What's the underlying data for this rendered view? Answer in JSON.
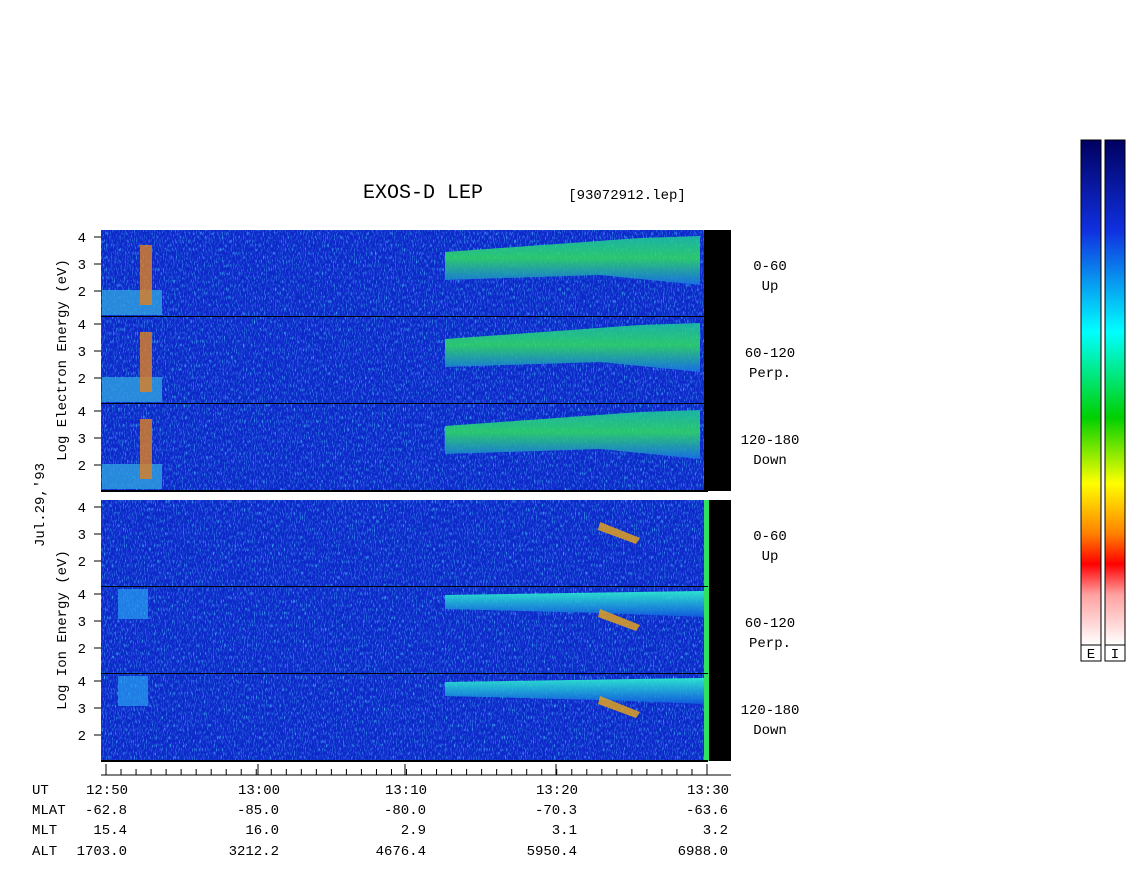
{
  "title": "EXOS-D LEP",
  "file": "[93072912.lep]",
  "date_label": "Jul.29,'93",
  "groups": [
    {
      "ylabel": "Log Electron Energy (eV)",
      "panels": [
        {
          "angle": "0-60",
          "dir": "Up",
          "ticks": [
            2,
            3,
            4
          ]
        },
        {
          "angle": "60-120",
          "dir": "Perp.",
          "ticks": [
            2,
            3,
            4
          ]
        },
        {
          "angle": "120-180",
          "dir": "Down",
          "ticks": [
            2,
            3,
            4
          ]
        }
      ]
    },
    {
      "ylabel": "Log Ion Energy (eV)",
      "panels": [
        {
          "angle": "0-60",
          "dir": "Up",
          "ticks": [
            2,
            3,
            4
          ]
        },
        {
          "angle": "60-120",
          "dir": "Perp.",
          "ticks": [
            2,
            3,
            4
          ]
        },
        {
          "angle": "120-180",
          "dir": "Down",
          "ticks": [
            2,
            3,
            4
          ]
        }
      ]
    }
  ],
  "axis": {
    "times": [
      "12:50",
      "13:00",
      "13:10",
      "13:20",
      "13:30"
    ],
    "rows": [
      {
        "name": "UT",
        "values": []
      },
      {
        "name": "MLAT",
        "values": [
          "-62.8",
          "-85.0",
          "-80.0",
          "-70.3",
          "-63.6"
        ]
      },
      {
        "name": "MLT",
        "values": [
          "15.4",
          "16.0",
          "2.9",
          "3.1",
          "3.2"
        ]
      },
      {
        "name": "ALT",
        "values": [
          "1703.0",
          "3212.2",
          "4676.4",
          "5950.4",
          "6988.0"
        ]
      }
    ]
  },
  "colorbars": [
    "E",
    "I"
  ]
}
